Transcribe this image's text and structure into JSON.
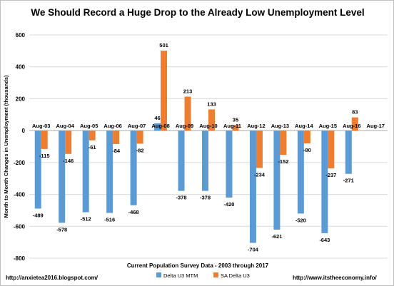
{
  "chart_data": {
    "type": "bar",
    "title": "We Should Record a Huge Drop to the Already Low Unemployment Level",
    "xlabel": "Current Population Survey Data - 2003 through 2017",
    "ylabel": "Month to Month Changes in Unemployment (thousands)",
    "ylim": [
      -800,
      600
    ],
    "yticks": [
      -800,
      -600,
      -400,
      -200,
      0,
      200,
      400,
      600
    ],
    "grid": true,
    "legend": "bottom-center",
    "categories": [
      "Aug-03",
      "Aug-04",
      "Aug-05",
      "Aug-06",
      "Aug-07",
      "Aug-08",
      "Aug-09",
      "Aug-10",
      "Aug-11",
      "Aug-12",
      "Aug-13",
      "Aug-14",
      "Aug-15",
      "Aug-16",
      "Aug-17"
    ],
    "series": [
      {
        "name": "Delta U3 MTM",
        "color": "#5B9BD5",
        "values": [
          -489,
          -578,
          -512,
          -516,
          -468,
          46,
          -378,
          -378,
          -420,
          -704,
          -621,
          -520,
          -643,
          -271,
          null
        ]
      },
      {
        "name": "SA Delta U3",
        "color": "#ED7D31",
        "values": [
          -115,
          -146,
          -61,
          -84,
          -82,
          501,
          213,
          133,
          35,
          -234,
          -152,
          -80,
          -237,
          83,
          null
        ]
      }
    ]
  },
  "footer": {
    "left": "http://anxietea2016.blogspot.com/",
    "right": "http://www.itstheeconomy.info/"
  }
}
